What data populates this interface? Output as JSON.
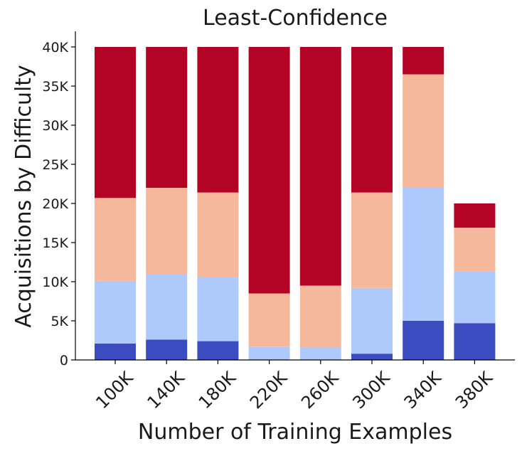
{
  "chart_data": {
    "type": "bar",
    "stacked": true,
    "title": "Least-Confidence",
    "xlabel": "Number of Training Examples",
    "ylabel": "Acquisitions by Difficulty",
    "categories": [
      "100K",
      "140K",
      "180K",
      "220K",
      "260K",
      "300K",
      "340K",
      "380K"
    ],
    "ylim": [
      0,
      42000
    ],
    "yticks": [
      0,
      5000,
      10000,
      15000,
      20000,
      25000,
      30000,
      35000,
      40000
    ],
    "ytick_labels": [
      "0",
      "5K",
      "10K",
      "15K",
      "20K",
      "25K",
      "30K",
      "35K",
      "40K"
    ],
    "grid": false,
    "series": [
      {
        "color": "#3b4cc0",
        "values": [
          2100,
          2600,
          2400,
          0,
          0,
          800,
          5000,
          4700
        ]
      },
      {
        "color": "#aec9fc",
        "values": [
          8000,
          8400,
          8200,
          1700,
          1600,
          8400,
          17000,
          6600
        ]
      },
      {
        "color": "#f6b89c",
        "values": [
          10600,
          11000,
          10800,
          6800,
          7900,
          12200,
          14500,
          5600
        ]
      },
      {
        "color": "#b40426",
        "values": [
          19300,
          18000,
          18600,
          31500,
          30500,
          18600,
          3500,
          3100
        ]
      }
    ]
  }
}
